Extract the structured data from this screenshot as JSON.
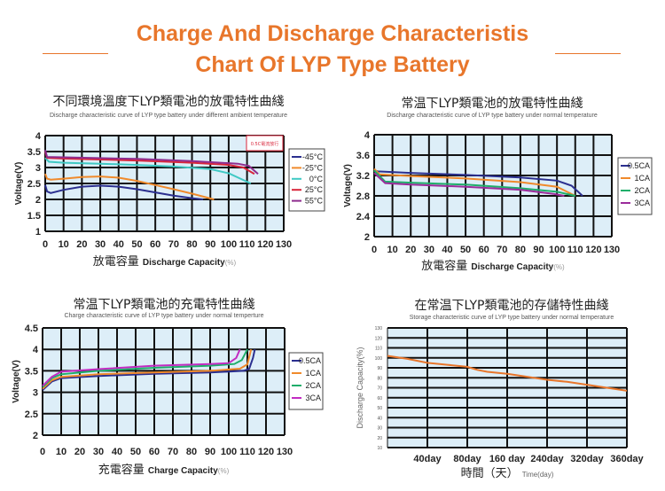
{
  "header": {
    "title_line1": "Charge And Discharge Characteristis",
    "title_line2": "Chart Of LYP Type Battery",
    "accent_color": "#e8762b"
  },
  "chart_data": [
    {
      "type": "line",
      "title": "不同環境溫度下LYP類電池的放電特性曲綫",
      "subtitle": "Discharge characteristic curve of LYP type battery under different ambient temperature",
      "xlabel_cn": "放電容量",
      "xlabel": "Discharge Capacity",
      "xlabel_unit": "(%)",
      "ylabel": "Voltage(V)",
      "xlim": [
        0,
        130
      ],
      "ylim": [
        1,
        4
      ],
      "xticks": [
        0,
        10,
        20,
        30,
        40,
        50,
        60,
        70,
        80,
        90,
        100,
        110,
        120,
        130
      ],
      "yticks": [
        1,
        1.5,
        2,
        2.5,
        3,
        3.5,
        4
      ],
      "grid": true,
      "legend": "right",
      "annotation": "0.5C電流放行",
      "series": [
        {
          "name": "-45°C",
          "color": "#2b2f8f",
          "points": [
            [
              0,
              2.45
            ],
            [
              1,
              2.25
            ],
            [
              3,
              2.2
            ],
            [
              10,
              2.3
            ],
            [
              20,
              2.4
            ],
            [
              30,
              2.43
            ],
            [
              40,
              2.4
            ],
            [
              50,
              2.32
            ],
            [
              60,
              2.22
            ],
            [
              70,
              2.12
            ],
            [
              80,
              2.04
            ],
            [
              86,
              2.0
            ]
          ]
        },
        {
          "name": "-25°C",
          "color": "#f08a2c",
          "points": [
            [
              0,
              2.8
            ],
            [
              1,
              2.65
            ],
            [
              3,
              2.62
            ],
            [
              10,
              2.65
            ],
            [
              20,
              2.7
            ],
            [
              30,
              2.72
            ],
            [
              40,
              2.68
            ],
            [
              50,
              2.58
            ],
            [
              60,
              2.45
            ],
            [
              70,
              2.32
            ],
            [
              80,
              2.18
            ],
            [
              92,
              2.0
            ]
          ]
        },
        {
          "name": "0°C",
          "color": "#3fc9c4",
          "points": [
            [
              0,
              3.3
            ],
            [
              2,
              3.18
            ],
            [
              10,
              3.15
            ],
            [
              30,
              3.12
            ],
            [
              50,
              3.08
            ],
            [
              70,
              3.03
            ],
            [
              90,
              2.95
            ],
            [
              100,
              2.82
            ],
            [
              112,
              2.5
            ]
          ]
        },
        {
          "name": "25°C",
          "color": "#d9253a",
          "points": [
            [
              0,
              3.5
            ],
            [
              1,
              3.3
            ],
            [
              10,
              3.28
            ],
            [
              50,
              3.22
            ],
            [
              80,
              3.15
            ],
            [
              100,
              3.08
            ],
            [
              108,
              3.0
            ],
            [
              114,
              2.8
            ]
          ]
        },
        {
          "name": "55°C",
          "color": "#8e2c8e",
          "points": [
            [
              0,
              3.55
            ],
            [
              1,
              3.33
            ],
            [
              10,
              3.32
            ],
            [
              50,
              3.27
            ],
            [
              80,
              3.2
            ],
            [
              105,
              3.12
            ],
            [
              111,
              3.05
            ],
            [
              116,
              2.8
            ]
          ]
        }
      ]
    },
    {
      "type": "line",
      "title": "常温下LYP類電池的放電特性曲綫",
      "subtitle": "Discharge characteristic curve of LYP type battery under normal temperature",
      "xlabel_cn": "放電容量",
      "xlabel": "Discharge Capacity",
      "xlabel_unit": "(%)",
      "ylabel": "Voltage(V)",
      "xlim": [
        0,
        130
      ],
      "ylim": [
        2,
        4
      ],
      "xticks": [
        0,
        10,
        20,
        30,
        40,
        50,
        60,
        70,
        80,
        90,
        100,
        110,
        120,
        130
      ],
      "yticks": [
        2,
        2.4,
        2.8,
        3.2,
        3.6,
        4
      ],
      "grid": true,
      "legend": "right",
      "series": [
        {
          "name": "0.5CA",
          "color": "#2b2f8f",
          "points": [
            [
              0,
              3.3
            ],
            [
              2,
              3.28
            ],
            [
              20,
              3.25
            ],
            [
              50,
              3.21
            ],
            [
              80,
              3.16
            ],
            [
              100,
              3.1
            ],
            [
              108,
              3.0
            ],
            [
              114,
              2.8
            ]
          ]
        },
        {
          "name": "1CA",
          "color": "#f08a2c",
          "points": [
            [
              0,
              3.33
            ],
            [
              3,
              3.22
            ],
            [
              20,
              3.19
            ],
            [
              50,
              3.14
            ],
            [
              80,
              3.07
            ],
            [
              100,
              2.98
            ],
            [
              110,
              2.8
            ]
          ]
        },
        {
          "name": "2CA",
          "color": "#1fae6a",
          "points": [
            [
              0,
              3.3
            ],
            [
              6,
              3.08
            ],
            [
              20,
              3.06
            ],
            [
              50,
              3.02
            ],
            [
              80,
              2.95
            ],
            [
              100,
              2.88
            ],
            [
              110,
              2.8
            ]
          ]
        },
        {
          "name": "3CA",
          "color": "#9b2c9b",
          "points": [
            [
              0,
              3.25
            ],
            [
              6,
              3.05
            ],
            [
              20,
              3.02
            ],
            [
              50,
              2.98
            ],
            [
              80,
              2.92
            ],
            [
              98,
              2.84
            ],
            [
              104,
              2.8
            ]
          ]
        }
      ]
    },
    {
      "type": "line",
      "title": "常温下LYP類電池的充電特性曲綫",
      "subtitle": "Charge characteristic curve of LYP type battery under normal temperture",
      "xlabel_cn": "充電容量",
      "xlabel": "Charge Capacity",
      "xlabel_unit": "(%)",
      "ylabel": "Voltage(V)",
      "xlim": [
        0,
        130
      ],
      "ylim": [
        2,
        4.5
      ],
      "xticks": [
        0,
        10,
        20,
        30,
        40,
        50,
        60,
        70,
        80,
        90,
        100,
        110,
        120,
        130
      ],
      "yticks": [
        2,
        2.5,
        3,
        3.5,
        4,
        4.5
      ],
      "grid": true,
      "legend": "right",
      "series": [
        {
          "name": "0.5CA",
          "color": "#2b2f8f",
          "points": [
            [
              0,
              3.05
            ],
            [
              5,
              3.25
            ],
            [
              10,
              3.33
            ],
            [
              30,
              3.38
            ],
            [
              60,
              3.43
            ],
            [
              90,
              3.46
            ],
            [
              108,
              3.5
            ],
            [
              111,
              3.55
            ],
            [
              113,
              3.8
            ],
            [
              114,
              4.0
            ]
          ]
        },
        {
          "name": "1CA",
          "color": "#f08a2c",
          "points": [
            [
              0,
              3.08
            ],
            [
              5,
              3.28
            ],
            [
              10,
              3.36
            ],
            [
              30,
              3.42
            ],
            [
              60,
              3.46
            ],
            [
              90,
              3.5
            ],
            [
              106,
              3.55
            ],
            [
              110,
              3.65
            ],
            [
              112,
              4.0
            ]
          ]
        },
        {
          "name": "2CA",
          "color": "#1fae6a",
          "points": [
            [
              0,
              3.12
            ],
            [
              5,
              3.33
            ],
            [
              10,
              3.42
            ],
            [
              30,
              3.5
            ],
            [
              60,
              3.57
            ],
            [
              90,
              3.62
            ],
            [
              103,
              3.66
            ],
            [
              107,
              3.75
            ],
            [
              110,
              4.0
            ]
          ]
        },
        {
          "name": "3CA",
          "color": "#c22cc2",
          "points": [
            [
              0,
              3.15
            ],
            [
              5,
              3.36
            ],
            [
              10,
              3.48
            ],
            [
              30,
              3.54
            ],
            [
              60,
              3.62
            ],
            [
              90,
              3.66
            ],
            [
              100,
              3.68
            ],
            [
              104,
              3.8
            ],
            [
              106,
              4.0
            ]
          ]
        }
      ]
    },
    {
      "type": "line",
      "title": "在常温下LYP類電池的存儲特性曲綫",
      "subtitle": "Storage characteristic curve of LYP type battery under normal temperature",
      "xlabel_cn": "時間（天）",
      "xlabel": "Time(day)",
      "xlabel_unit": "",
      "ylabel": "Discharge Capacity(%)",
      "ylim": [
        10,
        130
      ],
      "xticks": [
        40,
        80,
        160,
        240,
        320,
        360
      ],
      "xtick_labels": [
        "40day",
        "80day",
        "160 day",
        "240day",
        "320day",
        "360day"
      ],
      "yticks": [
        10,
        20,
        30,
        40,
        50,
        60,
        70,
        80,
        90,
        100,
        110,
        120,
        130
      ],
      "grid": true,
      "legend": "none",
      "series": [
        {
          "color": "#e8762b",
          "points": [
            [
              0,
              102
            ],
            [
              20,
              99
            ],
            [
              40,
              95
            ],
            [
              60,
              93
            ],
            [
              80,
              91
            ],
            [
              100,
              88
            ],
            [
              120,
              86
            ],
            [
              160,
              84
            ],
            [
              200,
              81
            ],
            [
              240,
              78
            ],
            [
              280,
              76
            ],
            [
              320,
              73
            ],
            [
              340,
              70
            ],
            [
              360,
              67
            ]
          ]
        }
      ]
    }
  ]
}
